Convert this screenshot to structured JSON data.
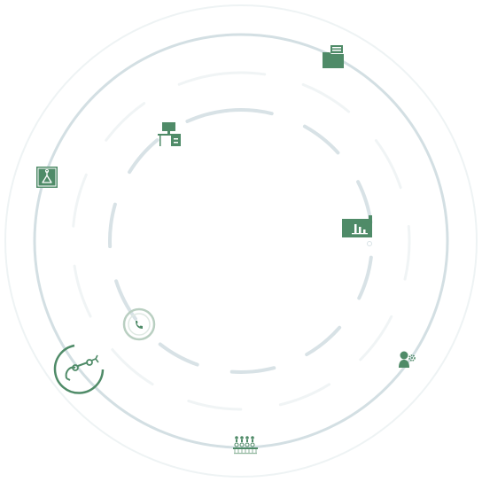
{
  "colors": {
    "ring_outer_faint": "#eef3f4",
    "ring_main": "#d3dfe3",
    "ring_inner_dash": "#d8e2e6",
    "ring_middle_dash": "#f0f4f5",
    "icon_green": "#4f8b68",
    "icon_green_light": "#8fb59c",
    "ring_phone": "#b9cfc1"
  },
  "icons": [
    {
      "name": "folder-icon"
    },
    {
      "name": "workstation-icon"
    },
    {
      "name": "clipboard-bag-icon"
    },
    {
      "name": "bar-chart-folder-icon"
    },
    {
      "name": "phone-icon"
    },
    {
      "name": "robot-arm-icon"
    },
    {
      "name": "user-settings-icon"
    },
    {
      "name": "team-meeting-icon"
    }
  ]
}
